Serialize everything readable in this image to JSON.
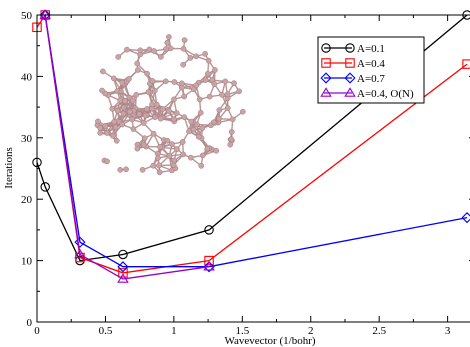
{
  "chart_data": {
    "type": "line",
    "title": "",
    "xlabel": "Wavevector (1/bohr)",
    "ylabel": "Iterations",
    "xlim": [
      0,
      3.2
    ],
    "ylim": [
      0,
      50
    ],
    "xticks": [
      0,
      0.5,
      1,
      1.5,
      2,
      2.5,
      3
    ],
    "xtick_labels": [
      "0",
      "0.5",
      "1",
      "1.5",
      "2",
      "2.5",
      "3"
    ],
    "yticks": [
      0,
      10,
      20,
      30,
      40,
      50
    ],
    "ytick_labels": [
      "0",
      "10",
      "20",
      "30",
      "40",
      "50"
    ],
    "grid": false,
    "legend_position": "top-right",
    "inset": "molecular cluster image (pinkish-grey ball-and-stick structure) in upper-left of plot area",
    "series": [
      {
        "name": "A=0.1",
        "color": "#000000",
        "marker": "circle",
        "x": [
          0,
          0.06,
          0.314,
          0.628,
          1.257,
          3.142
        ],
        "y": [
          26,
          22,
          10,
          11,
          15,
          50
        ]
      },
      {
        "name": "A=0.4",
        "color": "#ff0000",
        "marker": "square",
        "x": [
          0,
          0.06,
          0.314,
          0.628,
          1.257,
          3.142
        ],
        "y": [
          48,
          50,
          10.5,
          8,
          10,
          42
        ]
      },
      {
        "name": "A=0.7",
        "color": "#0000ff",
        "marker": "diamond",
        "x": [
          0.06,
          0.314,
          0.628,
          1.257,
          3.142
        ],
        "y": [
          50,
          13,
          9,
          9,
          17
        ]
      },
      {
        "name": "A=0.4, O(N)",
        "color": "#9900cc",
        "marker": "triangle",
        "x": [
          0.06,
          0.314,
          0.628,
          1.257
        ],
        "y": [
          50,
          11,
          7,
          9
        ]
      }
    ]
  }
}
